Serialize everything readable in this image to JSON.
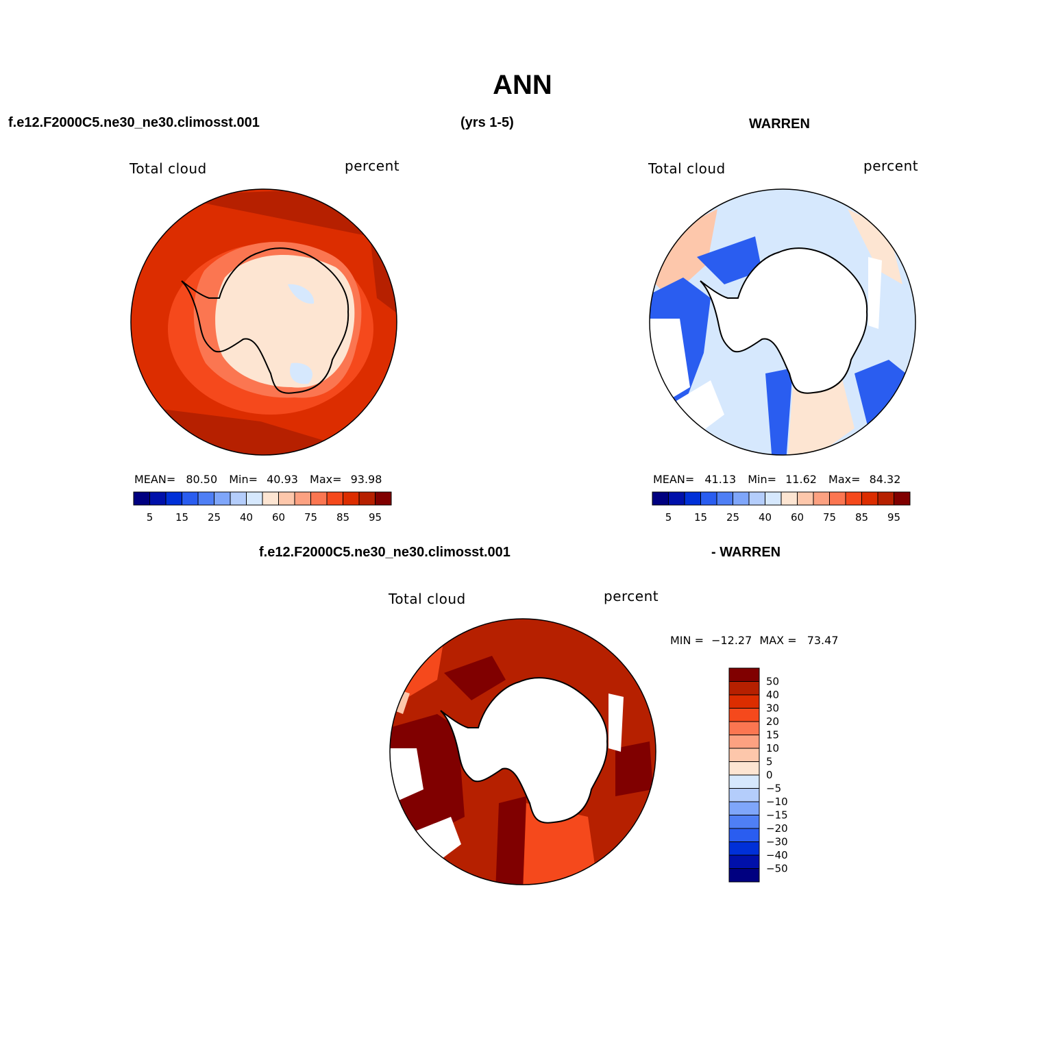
{
  "title": "ANN",
  "header": {
    "case_name": "f.e12.F2000C5.ne30_ne30.climosst.001",
    "years": "(yrs 1-5)",
    "obs_name": "WARREN",
    "diff_left": "f.e12.F2000C5.ne30_ne30.climosst.001",
    "diff_right": "- WARREN"
  },
  "chart_data": [
    {
      "type": "heatmap",
      "projection": "south-polar-stereographic",
      "variable": "Total cloud",
      "units": "percent",
      "stats": {
        "mean_label": "MEAN=",
        "mean": "80.50",
        "min_label": "Min=",
        "min": "40.93",
        "max_label": "Max=",
        "max": "93.98"
      },
      "legend": {
        "placement": "bottom",
        "colors": [
          "#000080",
          "#0010aa",
          "#0030d8",
          "#2a5df0",
          "#4f7ff5",
          "#7fa6fa",
          "#b4cdfb",
          "#d6e8fd",
          "#fde5d2",
          "#fdc7ab",
          "#fca181",
          "#fb7651",
          "#f5491c",
          "#dc2d00",
          "#b62000",
          "#800000"
        ],
        "tick_labels": [
          "5",
          "15",
          "25",
          "40",
          "60",
          "75",
          "85",
          "95"
        ]
      },
      "field_summary": {
        "ocean_outer": 90,
        "ocean_inner": 85,
        "coast_ring": 75,
        "continent": 55,
        "interior_min": 41
      }
    },
    {
      "type": "heatmap",
      "projection": "south-polar-stereographic",
      "variable": "Total cloud",
      "units": "percent",
      "stats": {
        "mean_label": "MEAN=",
        "mean": "41.13",
        "min_label": "Min=",
        "min": "11.62",
        "max_label": "Max=",
        "max": "84.32"
      },
      "legend": {
        "placement": "bottom",
        "colors": [
          "#000080",
          "#0010aa",
          "#0030d8",
          "#2a5df0",
          "#4f7ff5",
          "#7fa6fa",
          "#b4cdfb",
          "#d6e8fd",
          "#fde5d2",
          "#fdc7ab",
          "#fca181",
          "#fb7651",
          "#f5491c",
          "#dc2d00",
          "#b62000",
          "#800000"
        ],
        "tick_labels": [
          "5",
          "15",
          "25",
          "40",
          "60",
          "75",
          "85",
          "95"
        ]
      },
      "field_summary": {
        "dominant_ocean": 45,
        "low_sectors": 25,
        "high_sectors": 62,
        "missing_sectors": "no data"
      }
    },
    {
      "type": "heatmap",
      "projection": "south-polar-stereographic",
      "variable": "Total cloud",
      "units": "percent",
      "stats": {
        "min_label": "MIN =",
        "min": "−12.27",
        "max_label": "MAX =",
        "max": "73.47"
      },
      "legend": {
        "placement": "right",
        "colors": [
          "#800000",
          "#b62000",
          "#dc2d00",
          "#f5491c",
          "#fb7651",
          "#fca181",
          "#fdc7ab",
          "#fde5d2",
          "#d6e8fd",
          "#b4cdfb",
          "#7fa6fa",
          "#4f7ff5",
          "#2a5df0",
          "#0030d8",
          "#0010aa",
          "#000080"
        ],
        "tick_labels": [
          "50",
          "40",
          "30",
          "20",
          "15",
          "10",
          "5",
          "0",
          "−5",
          "−10",
          "−15",
          "−20",
          "−30",
          "−40",
          "−50"
        ]
      },
      "field_summary": {
        "dominant_difference": 45,
        "high_sectors": 55,
        "coastal": 30
      }
    }
  ]
}
